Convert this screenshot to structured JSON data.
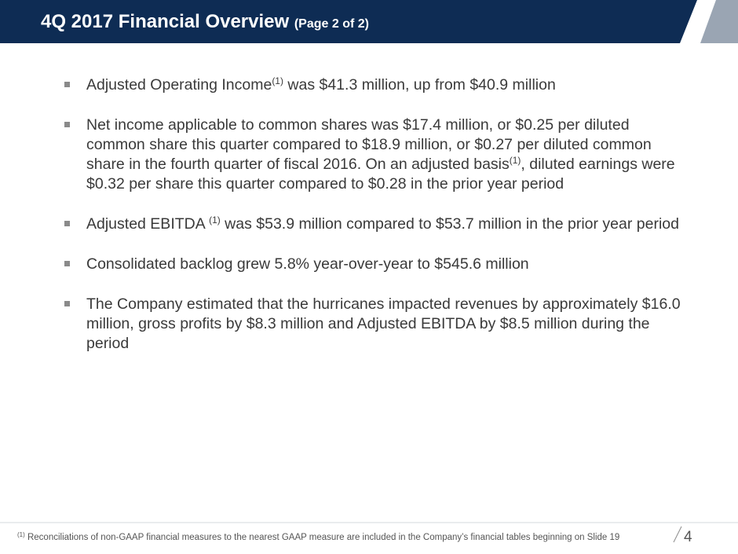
{
  "header": {
    "title": "4Q 2017 Financial Overview",
    "subtitle": "(Page 2 of 2)"
  },
  "bullets": [
    [
      {
        "text": "Adjusted Operating Income"
      },
      {
        "text": "(1)",
        "sup": true
      },
      {
        "text": " was $41.3 million, up from $40.9 million"
      }
    ],
    [
      {
        "text": "Net income applicable to common shares was $17.4 million, or $0.25 per diluted common share this quarter compared to $18.9 million, or $0.27 per diluted common share in the fourth quarter of fiscal 2016. On an adjusted basis"
      },
      {
        "text": "(1)",
        "sup": true
      },
      {
        "text": ", diluted earnings were $0.32 per share this quarter compared to $0.28 in the prior year period"
      }
    ],
    [
      {
        "text": "Adjusted EBITDA "
      },
      {
        "text": "(1)",
        "sup": true
      },
      {
        "text": " was $53.9 million compared to $53.7 million in the prior year period"
      }
    ],
    [
      {
        "text": "Consolidated backlog grew 5.8% year-over-year to $545.6 million"
      }
    ],
    [
      {
        "text": "The Company estimated that the hurricanes impacted revenues by approximately $16.0 million, gross profits by $8.3 million and Adjusted EBITDA by $8.5 million during the period"
      }
    ]
  ],
  "footnote": {
    "marker": "(1)",
    "text": " Reconciliations of non-GAAP financial measures to the nearest GAAP measure are included in the Company’s financial tables beginning on Slide 19"
  },
  "page_number": "4"
}
